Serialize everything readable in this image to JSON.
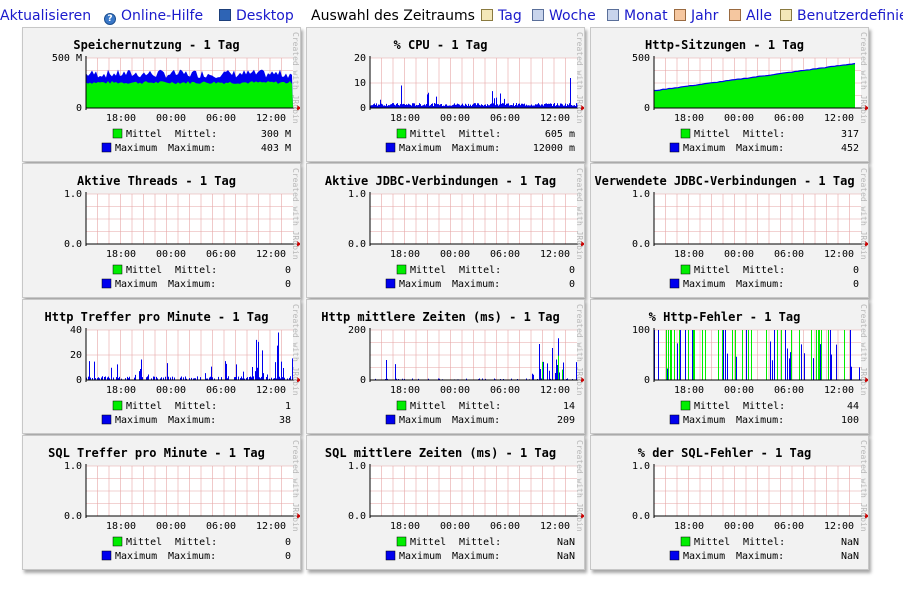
{
  "toolbar": {
    "refresh": "Aktualisieren",
    "help": "Online-Hilfe",
    "desktop": "Desktop",
    "period_label": "Auswahl des Zeitraums :",
    "periods": [
      "Tag",
      "Woche",
      "Monat",
      "Jahr",
      "Alle",
      "Benutzerdefiniert"
    ]
  },
  "common": {
    "x_ticks": [
      "18:00",
      "00:00",
      "06:00",
      "12:00"
    ],
    "legend_mean": "Mittel",
    "legend_max": "Maximum",
    "mean_label": "Mittel:",
    "max_label": "Maximum:",
    "watermark": "Created with JRobin",
    "colors": {
      "mean": "#00ee00",
      "max": "#0000ee",
      "grid": "#e6a5a5",
      "axis": "#cc0000"
    }
  },
  "charts": [
    {
      "title": "Speichernutzung - 1 Tag",
      "y_ticks": [
        "500 M",
        "0"
      ],
      "ymax": 500,
      "kind": "memory",
      "mean": "300 M",
      "max": "403 M",
      "mean_level": 300,
      "max_level": 403
    },
    {
      "title": "% CPU - 1 Tag",
      "y_ticks": [
        "20",
        "10",
        "0"
      ],
      "ymax": 20,
      "kind": "spiky",
      "mean": "605 m",
      "max": "12000 m",
      "mean_level": 0.6,
      "max_level": 12
    },
    {
      "title": "Http-Sitzungen - 1 Tag",
      "y_ticks": [
        "500",
        "0"
      ],
      "ymax": 500,
      "kind": "sessions",
      "mean": "317",
      "max": "452",
      "mean_level": 317,
      "max_level": 452
    },
    {
      "title": "Aktive Threads - 1 Tag",
      "y_ticks": [
        "1.0",
        "0.0"
      ],
      "ymax": 1,
      "kind": "empty",
      "mean": "0",
      "max": "0"
    },
    {
      "title": "Aktive JDBC-Verbindungen - 1 Tag",
      "y_ticks": [
        "1.0",
        "0.0"
      ],
      "ymax": 1,
      "kind": "empty",
      "mean": "0",
      "max": "0"
    },
    {
      "title": "Verwendete JDBC-Verbindungen - 1 Tag",
      "y_ticks": [
        "1.0",
        "0.0"
      ],
      "ymax": 1,
      "kind": "empty",
      "mean": "0",
      "max": "0"
    },
    {
      "title": "Http Treffer pro Minute - 1 Tag",
      "y_ticks": [
        "40",
        "20",
        "0"
      ],
      "ymax": 40,
      "kind": "hits",
      "mean": "1",
      "max": "38",
      "mean_level": 1,
      "max_level": 38
    },
    {
      "title": "Http mittlere Zeiten (ms) - 1 Tag",
      "y_ticks": [
        "200",
        "0"
      ],
      "ymax": 250,
      "kind": "times",
      "mean": "14",
      "max": "209",
      "mean_level": 14,
      "max_level": 209
    },
    {
      "title": "% Http-Fehler - 1 Tag",
      "y_ticks": [
        "100",
        "0"
      ],
      "ymax": 100,
      "kind": "errors",
      "mean": "44",
      "max": "100",
      "mean_level": 44,
      "max_level": 100
    },
    {
      "title": "SQL Treffer pro Minute - 1 Tag",
      "y_ticks": [
        "1.0",
        "0.0"
      ],
      "ymax": 1,
      "kind": "empty",
      "mean": "0",
      "max": "0"
    },
    {
      "title": "SQL mittlere Zeiten (ms) - 1 Tag",
      "y_ticks": [
        "1.0",
        "0.0"
      ],
      "ymax": 1,
      "kind": "empty",
      "mean": "NaN",
      "max": "NaN"
    },
    {
      "title": "% der SQL-Fehler - 1 Tag",
      "y_ticks": [
        "1.0",
        "0.0"
      ],
      "ymax": 1,
      "kind": "empty",
      "mean": "NaN",
      "max": "NaN"
    }
  ]
}
